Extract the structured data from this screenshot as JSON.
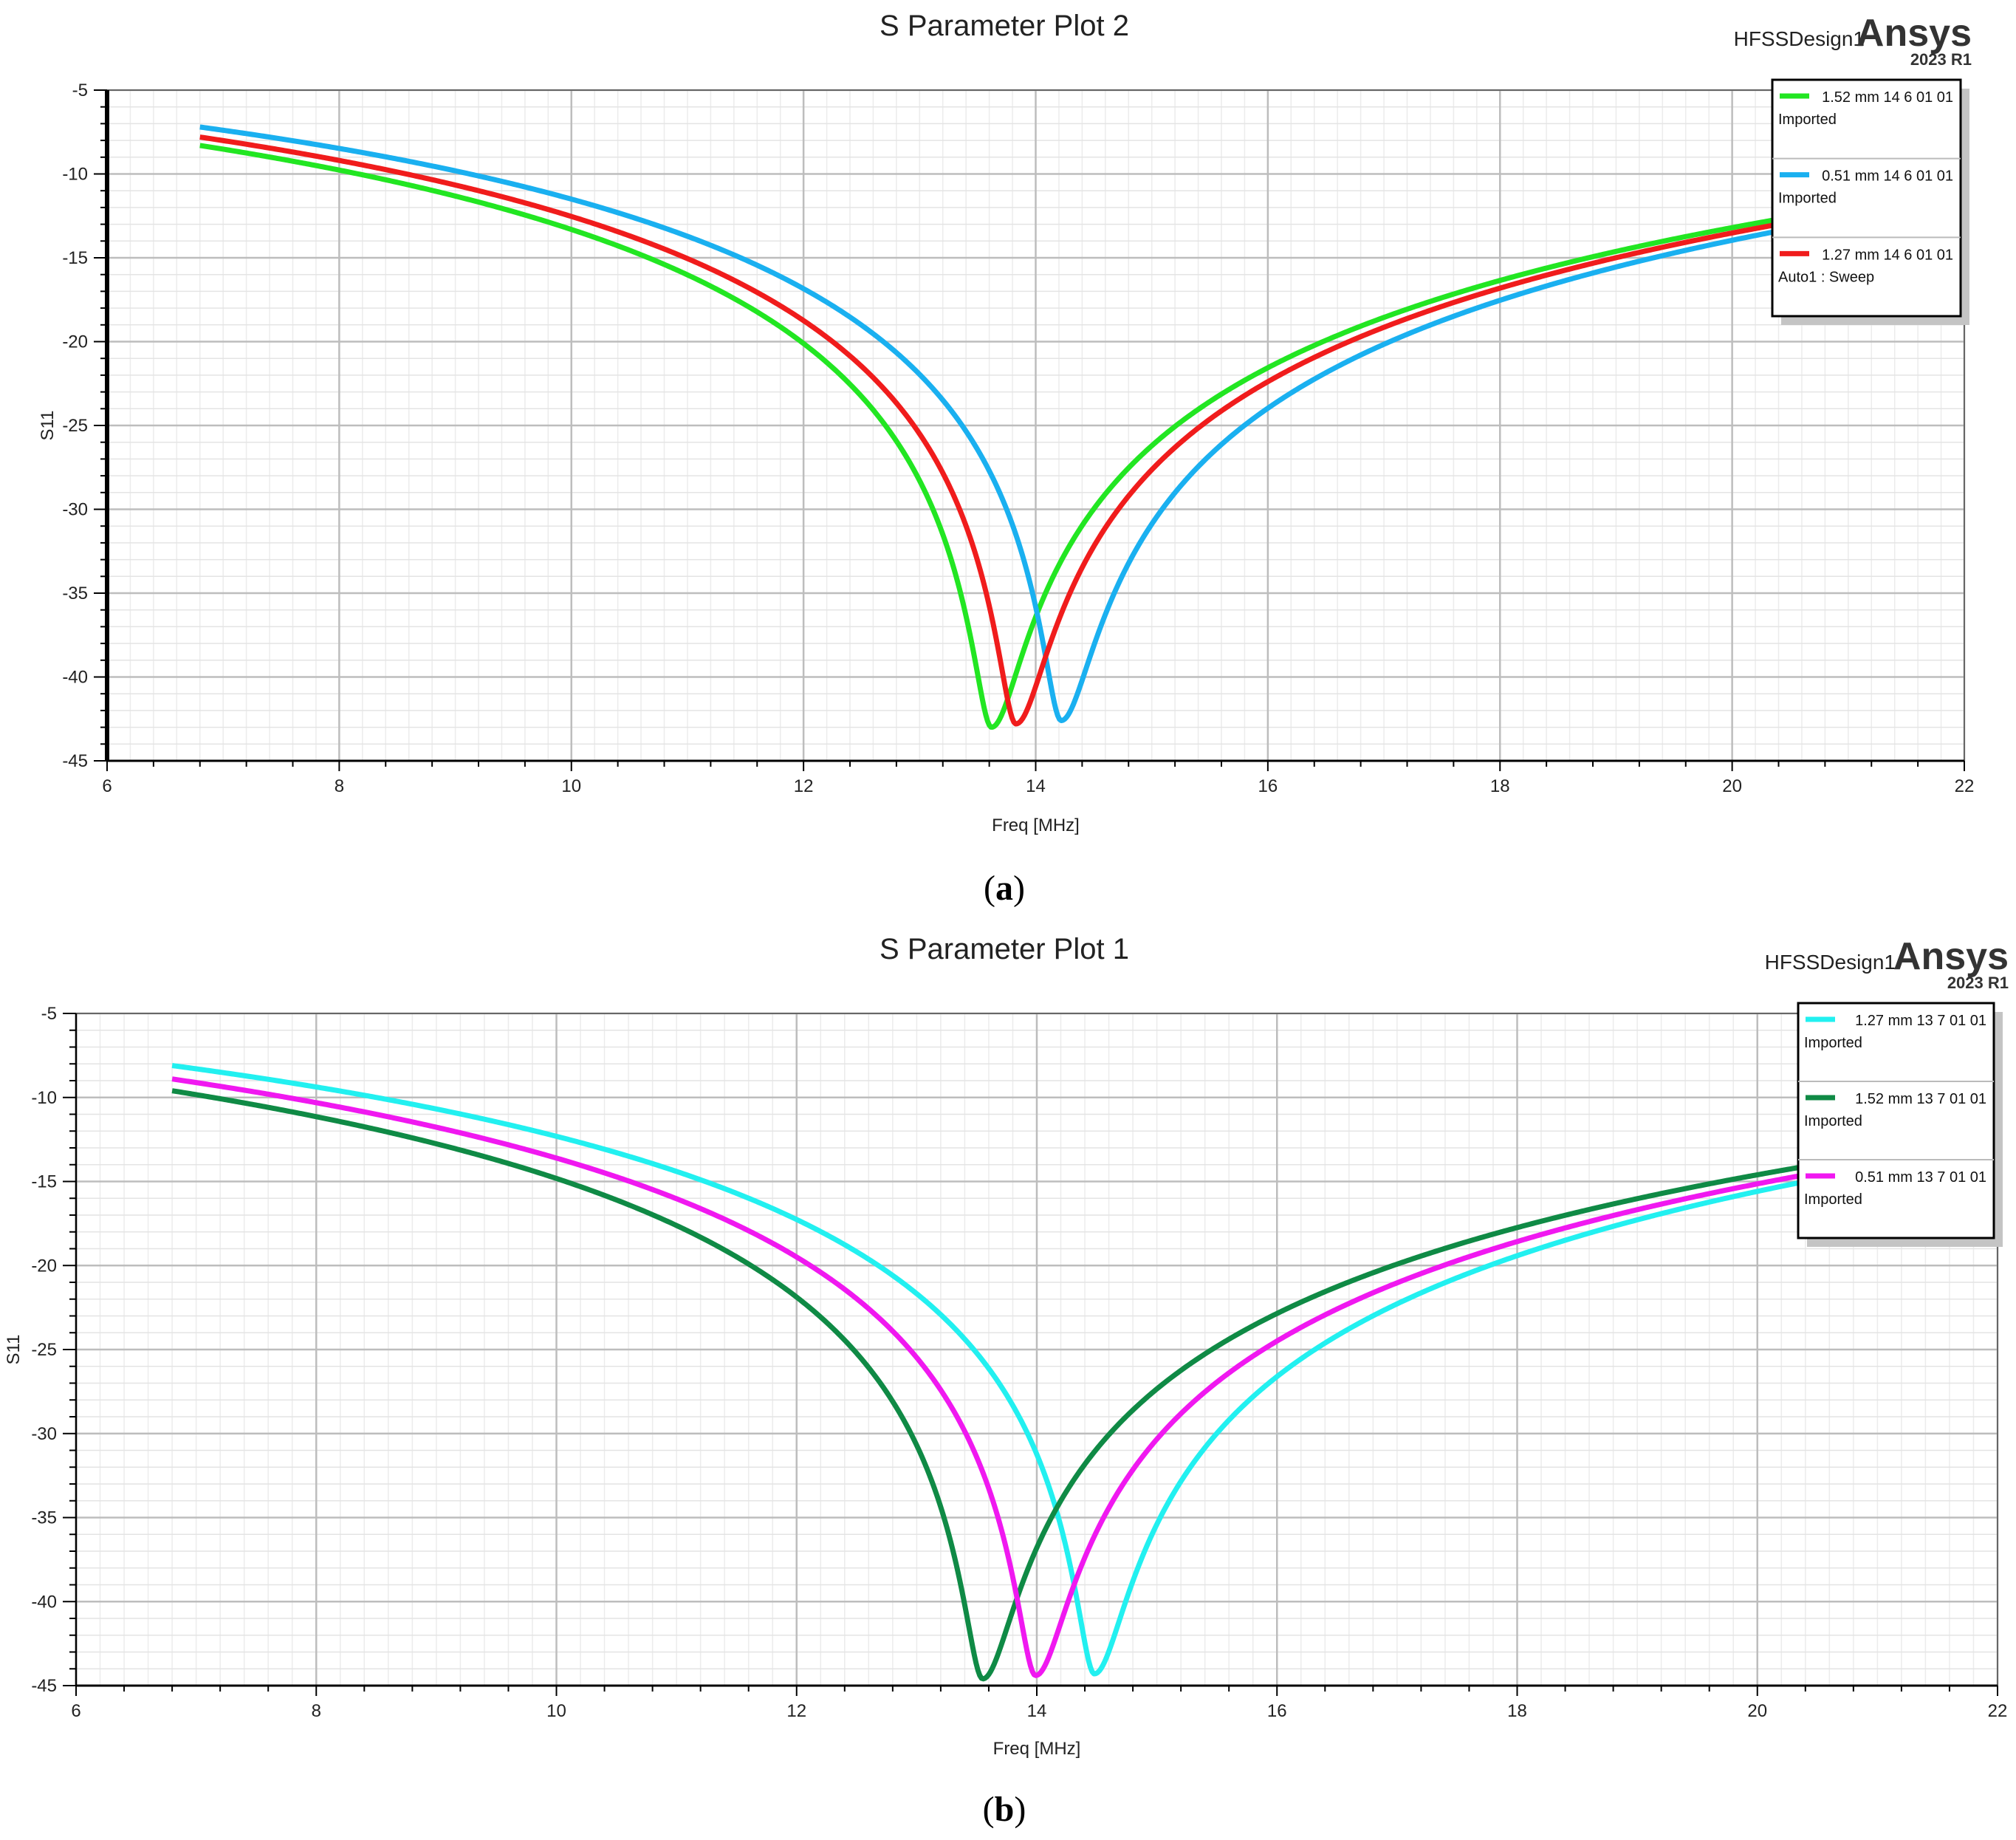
{
  "figure": {
    "caption_a": "a",
    "caption_b": "b"
  },
  "chart_data": [
    {
      "type": "line",
      "title": "S Parameter Plot 2",
      "design_name": "HFSSDesign1",
      "brand": "Ansys",
      "brand_version": "2023 R1",
      "xlabel": "Freq [MHz]",
      "ylabel": "S11",
      "xlim": [
        6,
        22
      ],
      "ylim": [
        -45,
        -5
      ],
      "xticks": [
        "6",
        "8",
        "10",
        "12",
        "14",
        "16",
        "18",
        "20",
        "22"
      ],
      "yticks": [
        "-5",
        "-10",
        "-15",
        "-20",
        "-25",
        "-30",
        "-35",
        "-40",
        "-45"
      ],
      "grid": true,
      "legend_position": "top-right",
      "series": [
        {
          "name": "1.52 mm 14 6 01 01",
          "source": "Imported",
          "color": "#22e622",
          "fmin": 13.62,
          "smin": -43.0,
          "sstart": -8.3,
          "send": -12.7
        },
        {
          "name": "0.51 mm 14 6 01 01",
          "source": "Imported",
          "color": "#1ab0f0",
          "fmin": 14.22,
          "smin": -42.6,
          "sstart": -7.2,
          "send": -13.4
        },
        {
          "name": "1.27 mm 14 6 01 01",
          "source": "Auto1 : Sweep",
          "color": "#f01c1c",
          "fmin": 13.83,
          "smin": -42.8,
          "sstart": -7.8,
          "send": -13.0
        }
      ],
      "x_start": 6.8,
      "x_end": 20.4
    },
    {
      "type": "line",
      "title": "S Parameter Plot 1",
      "design_name": "HFSSDesign1",
      "brand": "Ansys",
      "brand_version": "2023 R1",
      "xlabel": "Freq [MHz]",
      "ylabel": "S11",
      "xlim": [
        6,
        22
      ],
      "ylim": [
        -45,
        -5
      ],
      "xticks": [
        "6",
        "8",
        "10",
        "12",
        "14",
        "16",
        "18",
        "20",
        "22"
      ],
      "yticks": [
        "-5",
        "-10",
        "-15",
        "-20",
        "-25",
        "-30",
        "-35",
        "-40",
        "-45"
      ],
      "grid": true,
      "legend_position": "top-right",
      "series": [
        {
          "name": "1.27 mm 13 7 01 01",
          "source": "Imported",
          "color": "#22f0f0",
          "fmin": 14.48,
          "smin": -44.3,
          "sstart": -8.1,
          "send": -15.0
        },
        {
          "name": "1.52 mm 13 7 01 01",
          "source": "Imported",
          "color": "#0f8a45",
          "fmin": 13.55,
          "smin": -44.6,
          "sstart": -9.6,
          "send": -14.1
        },
        {
          "name": "0.51 mm 13 7 01 01",
          "source": "Imported",
          "color": "#f018f0",
          "fmin": 13.99,
          "smin": -44.4,
          "sstart": -8.9,
          "send": -14.6
        }
      ],
      "x_start": 6.8,
      "x_end": 20.4
    }
  ]
}
